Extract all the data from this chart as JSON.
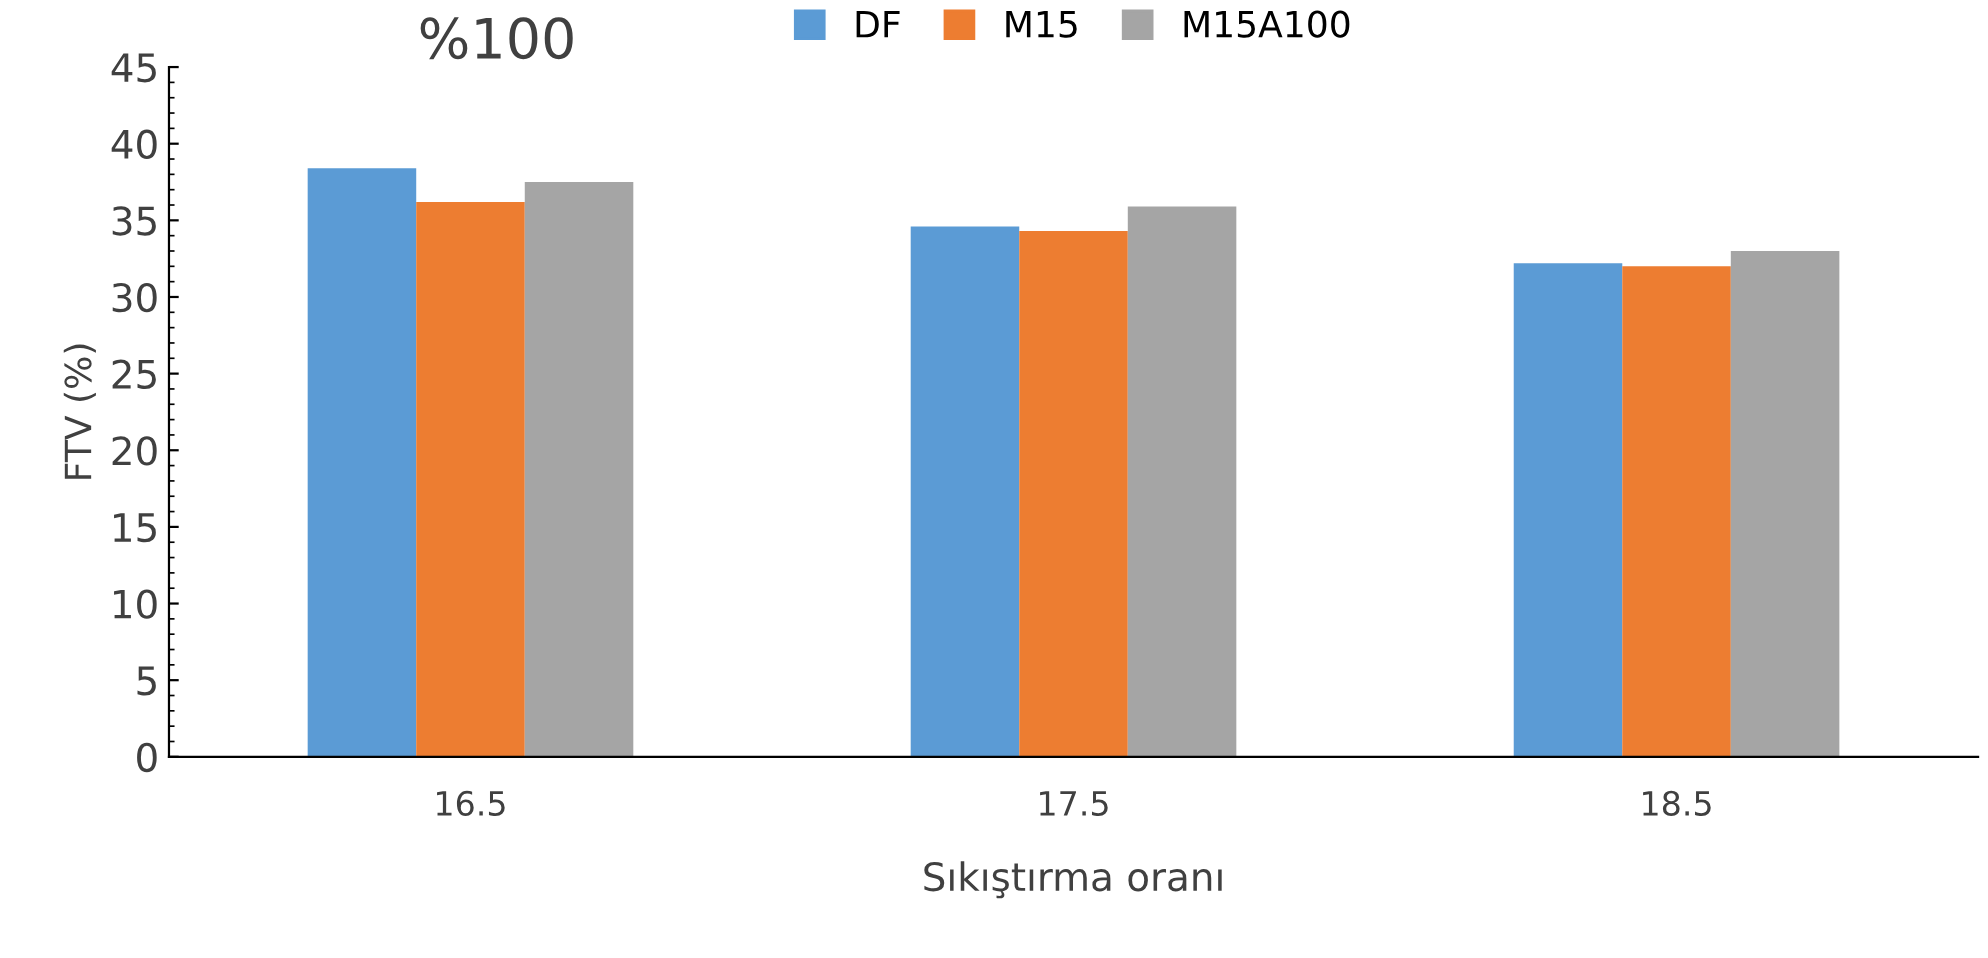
{
  "chart_data": {
    "type": "bar",
    "title": "%100",
    "xlabel": "Sıkıştırma oranı",
    "ylabel": "FTV (%)",
    "categories": [
      "16.5",
      "17.5",
      "18.5"
    ],
    "series": [
      {
        "name": "DF",
        "color": "#5b9bd5",
        "values": [
          38.4,
          34.6,
          32.2
        ]
      },
      {
        "name": "M15",
        "color": "#ed7d31",
        "values": [
          36.2,
          34.3,
          32.0
        ]
      },
      {
        "name": "M15A100",
        "color": "#a5a5a5",
        "values": [
          37.5,
          35.9,
          33.0
        ]
      }
    ],
    "ylim": [
      0,
      45
    ],
    "yticks": [
      0,
      5,
      10,
      15,
      20,
      25,
      30,
      35,
      40,
      45
    ],
    "grid": false,
    "legend": "top"
  }
}
